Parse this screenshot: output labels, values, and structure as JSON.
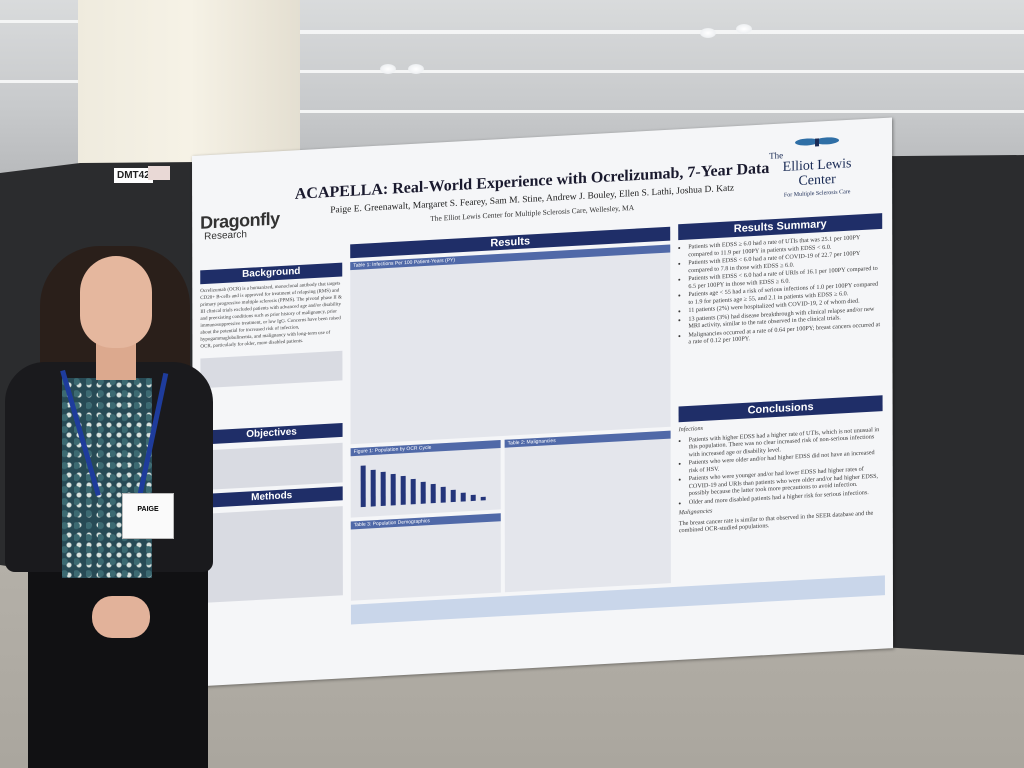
{
  "booth_tag": "DMT42",
  "poster": {
    "title": "ACAPELLA: Real-World Experience with Ocrelizumab, 7-Year Data",
    "authors": "Paige E. Greenawalt, Margaret S. Fearey, Sam M. Stine, Andrew J. Bouley, Ellen S. Lathi, Joshua D. Katz",
    "affiliation": "The Elliot Lewis Center for Multiple Sclerosis Care, Wellesley, MA",
    "logo_left": {
      "line1": "Dragonfly",
      "line2": "Research"
    },
    "logo_right": {
      "line1": "The",
      "line2": "Elliot Lewis",
      "line3": "Center",
      "line4": "For Multiple Sclerosis Care"
    },
    "sections": {
      "background": "Background",
      "objectives": "Objectives",
      "methods": "Methods",
      "results": "Results",
      "results_summary": "Results Summary",
      "conclusions": "Conclusions"
    },
    "background_text": "Ocrelizumab (OCR) is a humanized, monoclonal antibody that targets CD20+ B-cells and is approved for treatment of relapsing (RMS) and primary progressive multiple sclerosis (PPMS). The pivotal phase II & III clinical trials excluded patients with advanced age and/or disability and preexisting conditions such as prior history of malignancy, prior immunosuppressive treatment, or low IgG. Concerns have been raised about the potential for increased risk of infection, hypogammaglobulinemia, and malignancy with long-term use of OCR, particularly for older, more disabled patients.",
    "results_summary": [
      "Patients with EDSS ≥ 6.0 had a rate of UTIs that was 25.1 per 100PY compared to 11.9 per 100PY in patients with EDSS < 6.0.",
      "Patients with EDSS < 6.0 had a rate of COVID-19 of 22.7 per 100PY compared to 7.8 in those with EDSS ≥ 6.0.",
      "Patients with EDSS < 6.0 had a rate of URIs of 16.1 per 100PY compared to 6.5 per 100PY in those with EDSS ≥ 6.0.",
      "Patients age < 55 had a risk of serious infections of 1.0 per 100PY compared to 1.9 for patients age ≥ 55, and 2.1 in patients with EDSS ≥ 6.0.",
      "11 patients (2%) were hospitalized with COVID-19, 2 of whom died.",
      "13 patients (3%) had disease breakthrough with clinical relapse and/or new MRI activity, similar to the rate observed in the clinical trials.",
      "Malignancies occurred at a rate of 0.64 per 100PY; breast cancers occurred at a rate of 0.12 per 100PY."
    ],
    "conclusions_infections_label": "Infections",
    "conclusions": [
      "Patients with higher EDSS had a higher rate of UTIs, which is not unusual in this population. There was no clear increased risk of non-serious infections with increased age or disability level.",
      "Patients who were older and/or had higher EDSS did not have an increased risk of HSV.",
      "Patients who were younger and/or had lower EDSS had higher rates of COVID-19 and URIs than patients who were older and/or had higher EDSS, possibly because the latter took more precautions to avoid infection.",
      "Older and more disabled patients had a higher risk for serious infections."
    ],
    "conclusions_malignancies_label": "Malignancies",
    "conclusions_malignancies_text": "The breast cancer rate is similar to that observed in the SEER database and the combined OCR-studied populations.",
    "figure_labels": {
      "table1": "Table 1: Infections Per 100 Patient-Years (PY)",
      "figure1": "Figure 1: Population by OCR Cycle",
      "table2": "Table 2: Malignancies",
      "table3": "Table 3: Population Demographics"
    },
    "figure1_bars": [
      0.95,
      0.84,
      0.78,
      0.72,
      0.66,
      0.58,
      0.5,
      0.44,
      0.36,
      0.28,
      0.2,
      0.14,
      0.08
    ]
  },
  "person": {
    "badge_name": "PAIGE"
  }
}
